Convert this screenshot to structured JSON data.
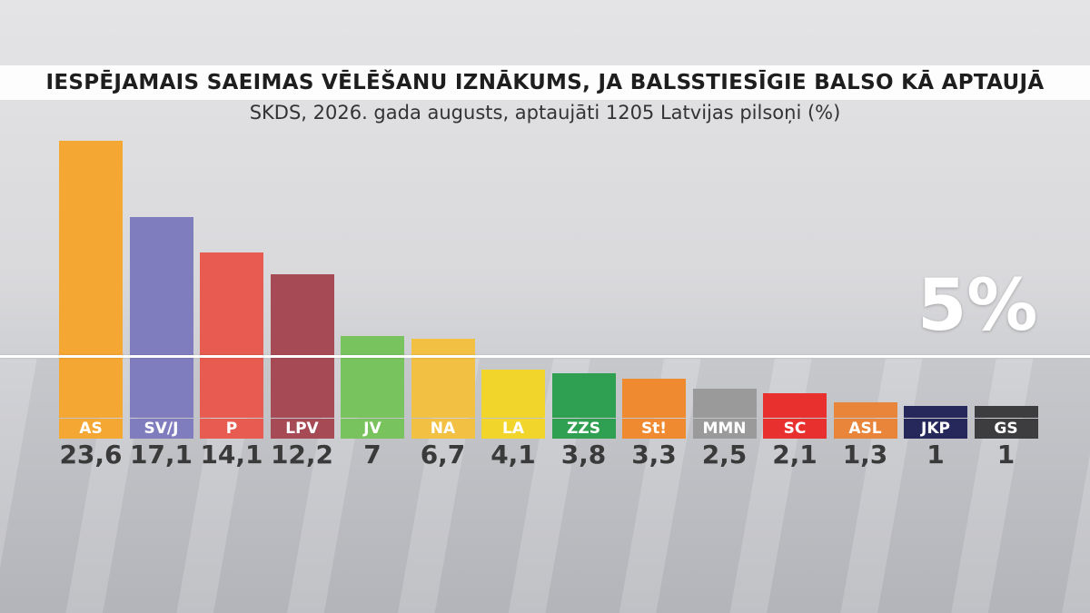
{
  "header": {
    "title": "IESPĒJAMAIS SAEIMAS VĒLĒŠANU IZNĀKUMS, JA BALSSTIESĪGIE BALSO KĀ APTAUJĀ",
    "subtitle": "SKDS, 2026. gada augusts, aptaujāti 1205 Latvijas pilsoņi (%)"
  },
  "threshold": {
    "label": "5%",
    "value": 5
  },
  "chart_data": {
    "type": "bar",
    "title": "IESPĒJAMAIS SAEIMAS VĒLĒŠANU IZNĀKUMS, JA BALSSTIESĪGIE BALSO KĀ APTAUJĀ",
    "subtitle": "SKDS, 2026. gada augusts, aptaujāti 1205 Latvijas pilsoņi (%)",
    "categories": [
      "AS",
      "SV/J",
      "P",
      "LPV",
      "JV",
      "NA",
      "LA",
      "ZZS",
      "St!",
      "MMN",
      "SC",
      "ASL",
      "JKP",
      "GS"
    ],
    "values": [
      23.6,
      17.1,
      14.1,
      12.2,
      7,
      6.7,
      4.1,
      3.8,
      3.3,
      2.5,
      2.1,
      1.3,
      1,
      1
    ],
    "value_labels": [
      "23,6",
      "17,1",
      "14,1",
      "12,2",
      "7",
      "6,7",
      "4,1",
      "3,8",
      "3,3",
      "2,5",
      "2,1",
      "1,3",
      "1",
      "1"
    ],
    "colors": [
      "#f5a733",
      "#7f7dbd",
      "#e75b50",
      "#a64a56",
      "#78c35e",
      "#f2c042",
      "#f1d52a",
      "#2f9f52",
      "#ef8a30",
      "#9a9a9a",
      "#e8312e",
      "#e9853a",
      "#26275a",
      "#3d3d3f"
    ],
    "threshold_line": 5,
    "ylim": [
      0,
      23.6
    ],
    "xlabel": "",
    "ylabel": "",
    "grid": false
  }
}
